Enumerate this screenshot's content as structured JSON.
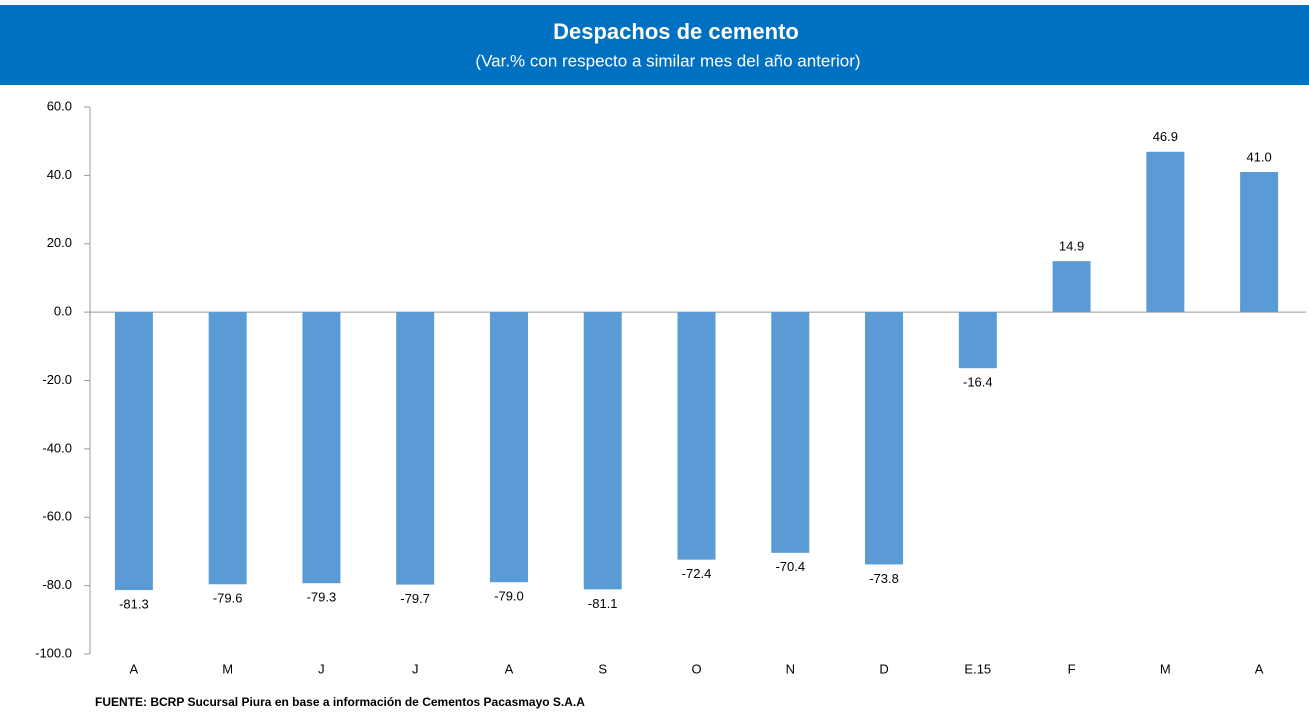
{
  "chart_data": {
    "type": "bar",
    "title": "Despachos de cemento",
    "subtitle": "(Var.% con respecto a similar mes del año anterior)",
    "categories": [
      "A",
      "M",
      "J",
      "J",
      "A",
      "S",
      "O",
      "N",
      "D",
      "E.15",
      "F",
      "M",
      "A"
    ],
    "values": [
      -81.3,
      -79.6,
      -79.3,
      -79.7,
      -79.0,
      -81.1,
      -72.4,
      -70.4,
      -73.8,
      -16.4,
      14.9,
      46.9,
      41.0
    ],
    "value_labels": [
      "-81.3",
      "-79.6",
      "-79.3",
      "-79.7",
      "-79.0",
      "-81.1",
      "-72.4",
      "-70.4",
      "-73.8",
      "-16.4",
      "14.9",
      "46.9",
      "41.0"
    ],
    "color": "#5b9bd5",
    "ylim": [
      -100,
      60
    ],
    "yticks": [
      {
        "value": -100,
        "label": "-100.0"
      },
      {
        "value": -80,
        "label": "-80.0"
      },
      {
        "value": -60,
        "label": "-60.0"
      },
      {
        "value": -40,
        "label": "-40.0"
      },
      {
        "value": -20,
        "label": "-20.0"
      },
      {
        "value": 0,
        "label": "0.0"
      },
      {
        "value": 20,
        "label": "20.0"
      },
      {
        "value": 40,
        "label": "40.0"
      },
      {
        "value": 60,
        "label": "60.0"
      }
    ],
    "grid": false,
    "source": "FUENTE: BCRP Sucursal Piura en base a información de Cementos Pacasmayo S.A.A"
  }
}
